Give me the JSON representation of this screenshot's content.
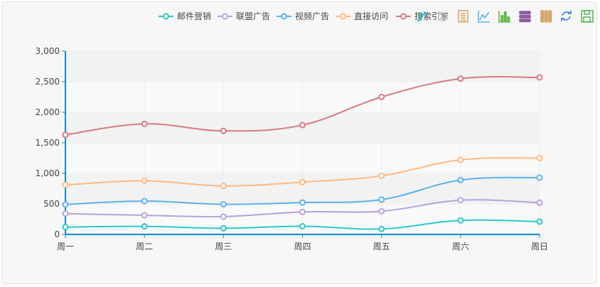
{
  "chart_data": {
    "type": "line",
    "smooth": true,
    "categories": [
      "周一",
      "周二",
      "周三",
      "周四",
      "周五",
      "周六",
      "周日"
    ],
    "ylim": [
      0,
      3000
    ],
    "yticks": [
      0,
      500,
      1000,
      1500,
      2000,
      2500,
      3000
    ],
    "ytick_labels": [
      "0",
      "500",
      "1,000",
      "1,500",
      "2,000",
      "2,500",
      "3,000"
    ],
    "series": [
      {
        "name": "邮件营销",
        "color": "#2ec7c9",
        "values": [
          120,
          132,
          101,
          134,
          90,
          230,
          210
        ]
      },
      {
        "name": "联盟广告",
        "color": "#b6a2de",
        "values": [
          220,
          182,
          191,
          234,
          290,
          330,
          310
        ]
      },
      {
        "name": "视频广告",
        "color": "#5ab1ef",
        "values": [
          150,
          232,
          201,
          154,
          190,
          330,
          410
        ]
      },
      {
        "name": "直接访问",
        "color": "#ffb980",
        "values": [
          320,
          332,
          301,
          334,
          390,
          330,
          320
        ]
      },
      {
        "name": "搜索引擎",
        "color": "#d87a80",
        "values": [
          820,
          932,
          901,
          934,
          1290,
          1330,
          1320
        ]
      }
    ],
    "stacked": true,
    "legend_position": "top-right",
    "grid": "alternating-bands"
  },
  "toolbox": {
    "items": [
      {
        "name": "mark-icon",
        "color": "#2ec7c9"
      },
      {
        "name": "mark-undo-icon",
        "color": "#cccccc"
      },
      {
        "name": "data-view-icon",
        "color": "#d7a56a"
      },
      {
        "name": "line-chart-icon",
        "color": "#5ab1ef"
      },
      {
        "name": "bar-chart-icon",
        "color": "#67b84a"
      },
      {
        "name": "stack-icon",
        "color": "#8c5da3"
      },
      {
        "name": "tiled-icon",
        "color": "#d7a56a"
      },
      {
        "name": "restore-icon",
        "color": "#2f7fe0"
      },
      {
        "name": "save-image-icon",
        "color": "#5cb85c"
      }
    ]
  }
}
